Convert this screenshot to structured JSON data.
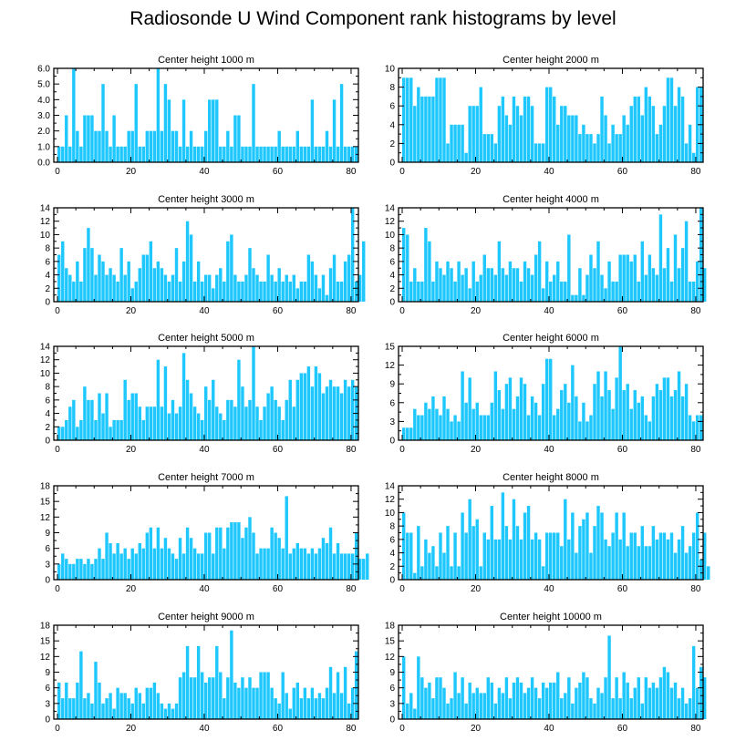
{
  "title": "Radiosonde U Wind Component rank histograms by level",
  "colors": {
    "bar": "#1ec8ff",
    "bar_edge": "#ffffff",
    "axis": "#000000",
    "background": "#ffffff"
  },
  "chart_data": [
    {
      "type": "bar",
      "title": "Center height 1000 m",
      "xlabel": "",
      "ylabel": "",
      "xlim": [
        -1,
        82
      ],
      "ylim": [
        0,
        6
      ],
      "xticks": [
        0,
        20,
        40,
        60,
        80
      ],
      "xtick_labels": [
        "0",
        "20",
        "40",
        "60",
        "80"
      ],
      "yticks": [
        0,
        1,
        2,
        3,
        4,
        5,
        6
      ],
      "ytick_labels": [
        "0.0",
        "1.0",
        "2.0",
        "3.0",
        "4.0",
        "5.0",
        "6.0"
      ],
      "values": [
        1,
        1,
        3,
        1,
        6,
        2,
        1,
        3,
        3,
        3,
        2,
        2,
        5,
        2,
        1,
        3,
        1,
        1,
        1,
        2,
        2,
        5,
        1,
        1,
        2,
        2,
        2,
        6,
        2,
        5,
        4,
        2,
        2,
        1,
        4,
        1,
        2,
        1,
        1,
        1,
        2,
        4,
        4,
        4,
        1,
        1,
        2,
        1,
        3,
        3,
        1,
        1,
        1,
        5,
        1,
        1,
        1,
        1,
        1,
        1,
        2,
        1,
        1,
        1,
        1,
        2,
        1,
        1,
        1,
        4,
        1,
        1,
        1,
        2,
        1,
        4,
        1,
        5,
        1,
        1,
        1,
        1
      ]
    },
    {
      "type": "bar",
      "title": "Center height 2000 m",
      "xlabel": "",
      "ylabel": "",
      "xlim": [
        -1,
        82
      ],
      "ylim": [
        0,
        10
      ],
      "xticks": [
        0,
        20,
        40,
        60,
        80
      ],
      "xtick_labels": [
        "0",
        "20",
        "40",
        "60",
        "80"
      ],
      "yticks": [
        0,
        2,
        4,
        6,
        8,
        10
      ],
      "ytick_labels": [
        "0",
        "2",
        "4",
        "6",
        "8",
        "10"
      ],
      "values": [
        9,
        9,
        9,
        6,
        8,
        7,
        7,
        7,
        7,
        9,
        9,
        9,
        2,
        4,
        4,
        4,
        4,
        1,
        6,
        6,
        6,
        8,
        3,
        3,
        3,
        2,
        6,
        7,
        5,
        4,
        7,
        6,
        5,
        7,
        7,
        6,
        2,
        2,
        2,
        8,
        8,
        7,
        4,
        6,
        6,
        5,
        5,
        5,
        3,
        4,
        3,
        3,
        2,
        3,
        7,
        5,
        2,
        4,
        3,
        3,
        5,
        4,
        6,
        7,
        7,
        5,
        8,
        7,
        6,
        3,
        4,
        6,
        9,
        9,
        6,
        8,
        7,
        2,
        4,
        1,
        8,
        8
      ]
    },
    {
      "type": "bar",
      "title": "Center height 3000 m",
      "xlabel": "",
      "ylabel": "",
      "xlim": [
        -1,
        82
      ],
      "ylim": [
        0,
        14
      ],
      "xticks": [
        0,
        20,
        40,
        60,
        80
      ],
      "xtick_labels": [
        "0",
        "20",
        "40",
        "60",
        "80"
      ],
      "yticks": [
        0,
        2,
        4,
        6,
        8,
        10,
        12,
        14
      ],
      "ytick_labels": [
        "0",
        "2",
        "4",
        "6",
        "8",
        "10",
        "12",
        "14"
      ],
      "values": [
        7,
        9,
        5,
        4,
        3,
        6,
        3,
        8,
        11,
        8,
        4,
        7,
        6,
        4,
        5,
        4,
        3,
        8,
        4,
        6,
        2,
        3,
        5,
        7,
        7,
        9,
        5,
        6,
        5,
        4,
        3,
        4,
        8,
        3,
        6,
        12,
        10,
        3,
        6,
        3,
        4,
        4,
        2,
        4,
        5,
        3,
        9,
        10,
        4,
        3,
        3,
        4,
        8,
        5,
        4,
        3,
        3,
        7,
        4,
        3,
        5,
        3,
        4,
        3,
        4,
        2,
        3,
        3,
        7,
        6,
        4,
        2,
        4,
        1,
        5,
        7,
        3,
        3,
        6,
        7,
        14,
        3,
        4,
        9
      ]
    },
    {
      "type": "bar",
      "title": "Center height 4000 m",
      "xlabel": "",
      "ylabel": "",
      "xlim": [
        -1,
        82
      ],
      "ylim": [
        0,
        14
      ],
      "xticks": [
        0,
        20,
        40,
        60,
        80
      ],
      "xtick_labels": [
        "0",
        "20",
        "40",
        "60",
        "80"
      ],
      "yticks": [
        0,
        2,
        4,
        6,
        8,
        10,
        12,
        14
      ],
      "ytick_labels": [
        "0",
        "2",
        "4",
        "6",
        "8",
        "10",
        "12",
        "14"
      ],
      "values": [
        11,
        10,
        3,
        5,
        3,
        3,
        11,
        9,
        3,
        6,
        5,
        4,
        6,
        5,
        3,
        6,
        4,
        5,
        2,
        6,
        3,
        4,
        7,
        5,
        5,
        4,
        9,
        5,
        4,
        6,
        5,
        5,
        3,
        6,
        5,
        4,
        7,
        9,
        2,
        6,
        3,
        4,
        6,
        3,
        3,
        10,
        1,
        1,
        5,
        1,
        4,
        7,
        5,
        9,
        4,
        2,
        6,
        3,
        3,
        7,
        7,
        7,
        6,
        7,
        3,
        9,
        4,
        7,
        5,
        4,
        13,
        5,
        8,
        3,
        10,
        5,
        8,
        12,
        3,
        3,
        6,
        14,
        5
      ]
    },
    {
      "type": "bar",
      "title": "Center height 5000 m",
      "xlabel": "",
      "ylabel": "",
      "xlim": [
        -1,
        82
      ],
      "ylim": [
        0,
        14
      ],
      "xticks": [
        0,
        20,
        40,
        60,
        80
      ],
      "xtick_labels": [
        "0",
        "20",
        "40",
        "60",
        "80"
      ],
      "yticks": [
        0,
        2,
        4,
        6,
        8,
        10,
        12,
        14
      ],
      "ytick_labels": [
        "0",
        "2",
        "4",
        "6",
        "8",
        "10",
        "12",
        "14"
      ],
      "values": [
        2,
        2,
        3,
        5,
        6,
        2,
        3,
        8,
        6,
        6,
        3,
        7,
        4,
        7,
        2,
        3,
        3,
        3,
        9,
        6,
        7,
        7,
        5,
        3,
        5,
        5,
        5,
        12,
        5,
        11,
        4,
        6,
        4,
        5,
        13,
        9,
        7,
        5,
        4,
        3,
        8,
        6,
        9,
        5,
        4,
        3,
        6,
        6,
        5,
        12,
        8,
        5,
        6,
        14,
        5,
        3,
        5,
        7,
        8,
        6,
        5,
        3,
        6,
        9,
        5,
        9,
        10,
        10,
        11,
        8,
        11,
        10,
        7,
        8,
        9,
        8,
        8,
        7,
        9,
        8,
        9,
        8
      ]
    },
    {
      "type": "bar",
      "title": "Center height 6000 m",
      "xlabel": "",
      "ylabel": "",
      "xlim": [
        -1,
        82
      ],
      "ylim": [
        0,
        15
      ],
      "xticks": [
        0,
        20,
        40,
        60,
        80
      ],
      "xtick_labels": [
        "0",
        "20",
        "40",
        "60",
        "80"
      ],
      "yticks": [
        0,
        3,
        6,
        9,
        12,
        15
      ],
      "ytick_labels": [
        "0",
        "3",
        "6",
        "9",
        "12",
        "15"
      ],
      "values": [
        2,
        2,
        2,
        5,
        4,
        4,
        6,
        5,
        7,
        5,
        4,
        7,
        5,
        3,
        4,
        3,
        11,
        6,
        10,
        5,
        6,
        4,
        4,
        4,
        6,
        11,
        8,
        5,
        9,
        10,
        5,
        7,
        10,
        9,
        4,
        7,
        6,
        4,
        9,
        13,
        13,
        4,
        5,
        8,
        9,
        6,
        12,
        7,
        3,
        6,
        3,
        4,
        9,
        11,
        7,
        11,
        8,
        5,
        10,
        15,
        8,
        9,
        5,
        8,
        6,
        7,
        4,
        3,
        7,
        9,
        8,
        10,
        10,
        7,
        8,
        11,
        7,
        9,
        4,
        3,
        4,
        4
      ]
    },
    {
      "type": "bar",
      "title": "Center height 7000 m",
      "xlabel": "",
      "ylabel": "",
      "xlim": [
        -1,
        82
      ],
      "ylim": [
        0,
        18
      ],
      "xticks": [
        0,
        20,
        40,
        60,
        80
      ],
      "xtick_labels": [
        "0",
        "20",
        "40",
        "60",
        "80"
      ],
      "yticks": [
        0,
        3,
        6,
        9,
        12,
        15,
        18
      ],
      "ytick_labels": [
        "0",
        "3",
        "6",
        "9",
        "12",
        "15",
        "18"
      ],
      "values": [
        3,
        5,
        4,
        3,
        3,
        4,
        4,
        3,
        4,
        3,
        4,
        6,
        4,
        9,
        7,
        5,
        7,
        5,
        6,
        4,
        6,
        5,
        7,
        6,
        9,
        10,
        6,
        10,
        6,
        8,
        6,
        5,
        4,
        8,
        5,
        10,
        8,
        6,
        5,
        5,
        9,
        9,
        5,
        10,
        10,
        6,
        10,
        11,
        11,
        11,
        8,
        10,
        12,
        9,
        5,
        6,
        6,
        6,
        10,
        9,
        8,
        6,
        16,
        5,
        6,
        7,
        6,
        6,
        5,
        6,
        5,
        6,
        8,
        7,
        10,
        5,
        7,
        5,
        5,
        5,
        5,
        9,
        4,
        4,
        5
      ]
    },
    {
      "type": "bar",
      "title": "Center height 8000 m",
      "xlabel": "",
      "ylabel": "",
      "xlim": [
        -1,
        82
      ],
      "ylim": [
        0,
        14
      ],
      "xticks": [
        0,
        20,
        40,
        60,
        80
      ],
      "xtick_labels": [
        "0",
        "20",
        "40",
        "60",
        "80"
      ],
      "yticks": [
        0,
        2,
        4,
        6,
        8,
        10,
        12,
        14
      ],
      "ytick_labels": [
        "0",
        "2",
        "4",
        "6",
        "8",
        "10",
        "12",
        "14"
      ],
      "values": [
        10,
        7,
        7,
        1,
        8,
        2,
        6,
        4,
        5,
        2,
        7,
        4,
        8,
        2,
        7,
        2,
        10,
        7,
        12,
        8,
        9,
        2,
        7,
        6,
        11,
        6,
        6,
        13,
        8,
        6,
        12,
        8,
        6,
        10,
        11,
        6,
        7,
        6,
        2,
        7,
        7,
        7,
        7,
        5,
        12,
        6,
        10,
        4,
        8,
        9,
        10,
        4,
        8,
        11,
        10,
        6,
        5,
        7,
        10,
        6,
        10,
        5,
        7,
        7,
        5,
        8,
        5,
        5,
        8,
        6,
        7,
        7,
        6,
        7,
        4,
        6,
        8,
        4,
        5,
        7,
        10,
        3,
        7,
        2
      ]
    },
    {
      "type": "bar",
      "title": "Center height 9000 m",
      "xlabel": "",
      "ylabel": "",
      "xlim": [
        -1,
        82
      ],
      "ylim": [
        0,
        18
      ],
      "xticks": [
        0,
        20,
        40,
        60,
        80
      ],
      "xtick_labels": [
        "0",
        "20",
        "40",
        "60",
        "80"
      ],
      "yticks": [
        0,
        3,
        6,
        9,
        12,
        15,
        18
      ],
      "ytick_labels": [
        "0",
        "3",
        "6",
        "9",
        "12",
        "15",
        "18"
      ],
      "values": [
        7,
        4,
        7,
        4,
        4,
        7,
        13,
        4,
        5,
        3,
        11,
        7,
        3,
        4,
        5,
        2,
        6,
        5,
        5,
        4,
        3,
        6,
        5,
        3,
        6,
        6,
        7,
        5,
        3,
        2,
        3,
        2,
        3,
        8,
        9,
        14,
        8,
        8,
        14,
        9,
        7,
        8,
        8,
        14,
        9,
        4,
        8,
        17,
        7,
        6,
        8,
        6,
        8,
        6,
        6,
        9,
        9,
        9,
        6,
        4,
        3,
        9,
        5,
        2,
        6,
        7,
        4,
        6,
        4,
        6,
        4,
        5,
        4,
        6,
        10,
        5,
        9,
        5,
        10,
        3,
        6,
        13
      ]
    },
    {
      "type": "bar",
      "title": "Center height 10000 m",
      "xlabel": "",
      "ylabel": "",
      "xlim": [
        -1,
        82
      ],
      "ylim": [
        0,
        18
      ],
      "xticks": [
        0,
        20,
        40,
        60,
        80
      ],
      "xtick_labels": [
        "0",
        "20",
        "40",
        "60",
        "80"
      ],
      "yticks": [
        0,
        3,
        6,
        9,
        12,
        15,
        18
      ],
      "ytick_labels": [
        "0",
        "3",
        "6",
        "9",
        "12",
        "15",
        "18"
      ],
      "values": [
        12,
        3,
        5,
        2,
        12,
        8,
        6,
        7,
        4,
        8,
        8,
        6,
        3,
        4,
        9,
        5,
        8,
        3,
        7,
        5,
        6,
        5,
        5,
        8,
        7,
        3,
        6,
        5,
        8,
        4,
        7,
        8,
        7,
        5,
        6,
        8,
        6,
        4,
        7,
        6,
        7,
        7,
        9,
        4,
        5,
        8,
        3,
        6,
        7,
        9,
        8,
        4,
        3,
        6,
        5,
        8,
        16,
        4,
        8,
        4,
        9,
        7,
        4,
        6,
        8,
        3,
        8,
        6,
        7,
        6,
        8,
        10,
        9,
        6,
        7,
        4,
        6,
        3,
        4,
        14,
        6,
        10,
        8
      ]
    }
  ]
}
